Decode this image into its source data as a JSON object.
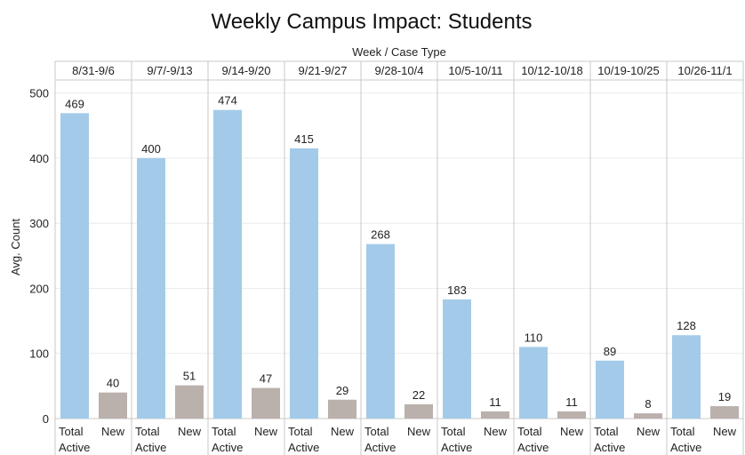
{
  "chart_data": {
    "type": "bar",
    "title": "Weekly Campus Impact: Students",
    "header": "Week / Case Type",
    "ylabel": "Avg. Count",
    "ylim": [
      0,
      520
    ],
    "yticks": [
      0,
      100,
      200,
      300,
      400,
      500
    ],
    "case_types": [
      "Total Active",
      "New"
    ],
    "colors": {
      "total_active": "#a3cbe9",
      "new": "#bab0ac",
      "grid": "#ececec",
      "divider": "#c8c8c8"
    },
    "weeks": [
      {
        "week": "8/31-9/6",
        "values": [
          469,
          40
        ]
      },
      {
        "week": "9/7/-9/13",
        "values": [
          400,
          51
        ]
      },
      {
        "week": "9/14-9/20",
        "values": [
          474,
          47
        ]
      },
      {
        "week": "9/21-9/27",
        "values": [
          415,
          29
        ]
      },
      {
        "week": "9/28-10/4",
        "values": [
          268,
          22
        ]
      },
      {
        "week": "10/5-10/11",
        "values": [
          183,
          11
        ]
      },
      {
        "week": "10/12-10/18",
        "values": [
          110,
          11
        ]
      },
      {
        "week": "10/19-10/25",
        "values": [
          89,
          8
        ]
      },
      {
        "week": "10/26-11/1",
        "values": [
          128,
          19
        ]
      }
    ]
  }
}
